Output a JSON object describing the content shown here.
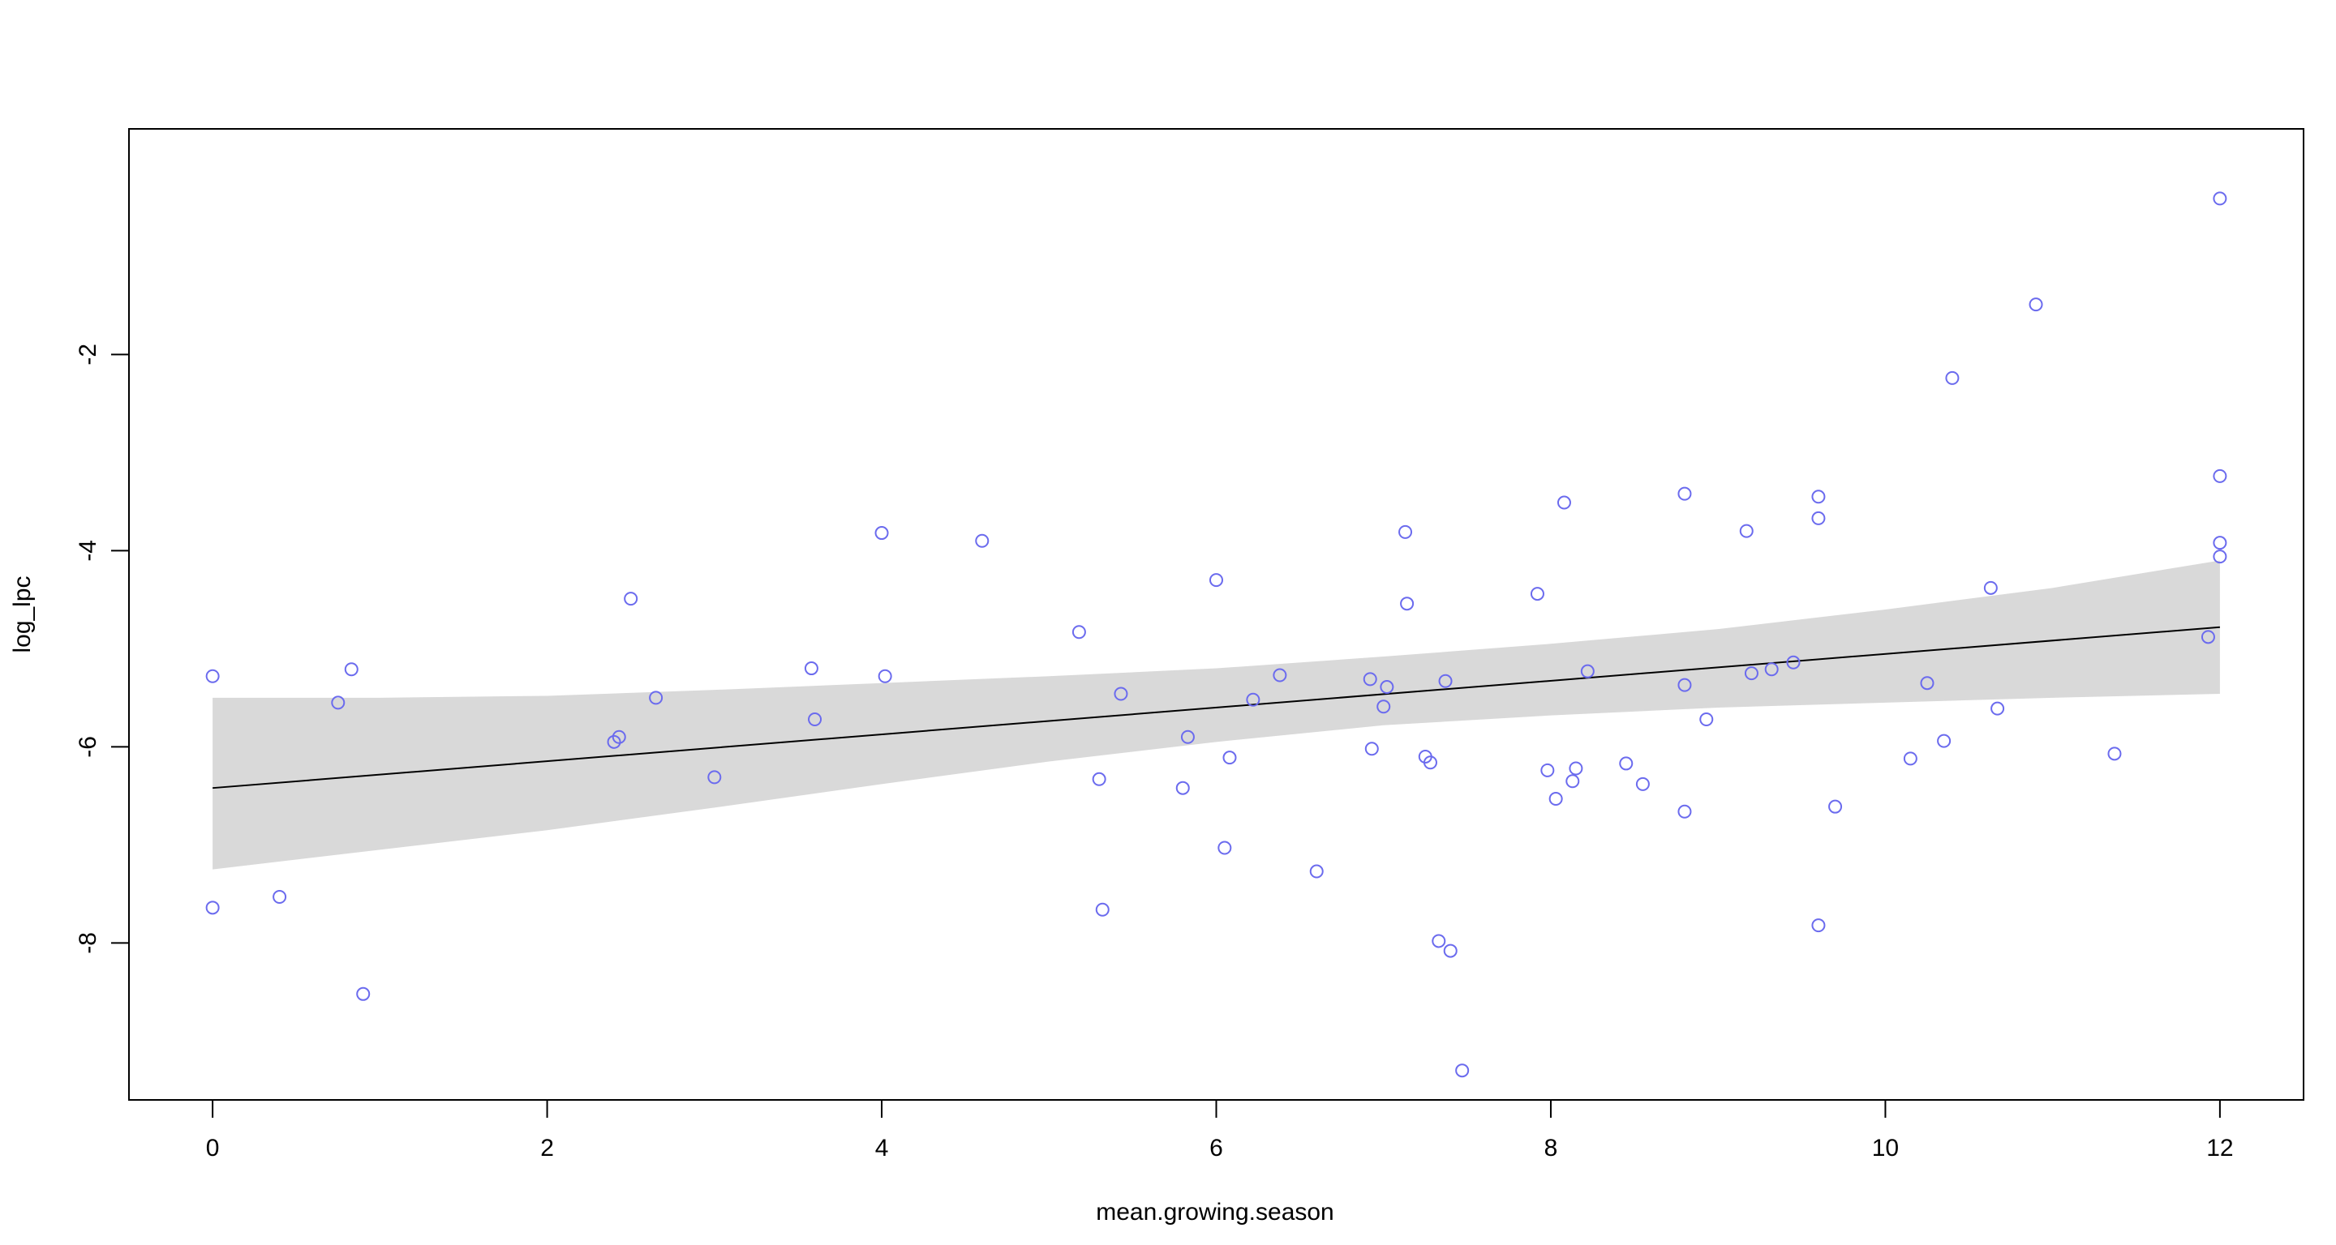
{
  "chart_data": {
    "type": "scatter",
    "xlabel": "mean.growing.season",
    "ylabel": "log_lpc",
    "xlim": [
      -0.5,
      12.5
    ],
    "ylim": [
      -9.6,
      0.3
    ],
    "x_ticks": [
      0,
      2,
      4,
      6,
      8,
      10,
      12
    ],
    "y_ticks": [
      -8,
      -6,
      -4,
      -2
    ],
    "x_tick_labels": [
      "0",
      "2",
      "4",
      "6",
      "8",
      "10",
      "12"
    ],
    "y_tick_labels": [
      "-8",
      "-6",
      "-4",
      "-2"
    ],
    "grid": false,
    "legend": "none",
    "point_color": "#6b6bee",
    "fit_color": "#000000",
    "band_color": "#d9d9d9",
    "points": [
      {
        "x": 0.0,
        "y": -5.28
      },
      {
        "x": 0.0,
        "y": -7.64
      },
      {
        "x": 0.4,
        "y": -7.53
      },
      {
        "x": 0.75,
        "y": -5.55
      },
      {
        "x": 0.83,
        "y": -5.21
      },
      {
        "x": 0.9,
        "y": -8.52
      },
      {
        "x": 2.4,
        "y": -5.95
      },
      {
        "x": 2.43,
        "y": -5.9
      },
      {
        "x": 2.5,
        "y": -4.49
      },
      {
        "x": 2.65,
        "y": -5.5
      },
      {
        "x": 3.0,
        "y": -6.31
      },
      {
        "x": 3.58,
        "y": -5.2
      },
      {
        "x": 3.6,
        "y": -5.72
      },
      {
        "x": 4.0,
        "y": -3.82
      },
      {
        "x": 4.02,
        "y": -5.28
      },
      {
        "x": 4.6,
        "y": -3.9
      },
      {
        "x": 5.18,
        "y": -4.83
      },
      {
        "x": 5.3,
        "y": -6.33
      },
      {
        "x": 5.32,
        "y": -7.66
      },
      {
        "x": 5.43,
        "y": -5.46
      },
      {
        "x": 5.8,
        "y": -6.42
      },
      {
        "x": 5.83,
        "y": -5.9
      },
      {
        "x": 6.0,
        "y": -4.3
      },
      {
        "x": 6.05,
        "y": -7.03
      },
      {
        "x": 6.08,
        "y": -6.11
      },
      {
        "x": 6.22,
        "y": -5.52
      },
      {
        "x": 6.38,
        "y": -5.27
      },
      {
        "x": 6.6,
        "y": -7.27
      },
      {
        "x": 6.92,
        "y": -5.31
      },
      {
        "x": 6.93,
        "y": -6.02
      },
      {
        "x": 7.0,
        "y": -5.59
      },
      {
        "x": 7.02,
        "y": -5.39
      },
      {
        "x": 7.13,
        "y": -3.81
      },
      {
        "x": 7.14,
        "y": -4.54
      },
      {
        "x": 7.25,
        "y": -6.1
      },
      {
        "x": 7.28,
        "y": -6.16
      },
      {
        "x": 7.33,
        "y": -7.98
      },
      {
        "x": 7.37,
        "y": -5.33
      },
      {
        "x": 7.4,
        "y": -8.08
      },
      {
        "x": 7.47,
        "y": -9.3
      },
      {
        "x": 7.92,
        "y": -4.44
      },
      {
        "x": 7.98,
        "y": -6.24
      },
      {
        "x": 8.03,
        "y": -6.53
      },
      {
        "x": 8.08,
        "y": -3.51
      },
      {
        "x": 8.13,
        "y": -6.35
      },
      {
        "x": 8.15,
        "y": -6.22
      },
      {
        "x": 8.22,
        "y": -5.23
      },
      {
        "x": 8.45,
        "y": -6.17
      },
      {
        "x": 8.55,
        "y": -6.38
      },
      {
        "x": 8.8,
        "y": -3.42
      },
      {
        "x": 8.8,
        "y": -5.37
      },
      {
        "x": 8.8,
        "y": -6.66
      },
      {
        "x": 8.93,
        "y": -5.72
      },
      {
        "x": 9.17,
        "y": -3.8
      },
      {
        "x": 9.2,
        "y": -5.25
      },
      {
        "x": 9.32,
        "y": -5.21
      },
      {
        "x": 9.45,
        "y": -5.14
      },
      {
        "x": 9.6,
        "y": -3.45
      },
      {
        "x": 9.6,
        "y": -3.67
      },
      {
        "x": 9.6,
        "y": -7.82
      },
      {
        "x": 9.7,
        "y": -6.61
      },
      {
        "x": 10.15,
        "y": -6.12
      },
      {
        "x": 10.25,
        "y": -5.35
      },
      {
        "x": 10.35,
        "y": -5.94
      },
      {
        "x": 10.4,
        "y": -2.24
      },
      {
        "x": 10.63,
        "y": -4.38
      },
      {
        "x": 10.67,
        "y": -5.61
      },
      {
        "x": 10.9,
        "y": -1.49
      },
      {
        "x": 11.37,
        "y": -6.07
      },
      {
        "x": 11.93,
        "y": -4.88
      },
      {
        "x": 12.0,
        "y": -0.41
      },
      {
        "x": 12.0,
        "y": -3.24
      },
      {
        "x": 12.0,
        "y": -3.92
      },
      {
        "x": 12.0,
        "y": -4.06
      }
    ],
    "fit_line": {
      "x": [
        0,
        12
      ],
      "y": [
        -6.42,
        -4.78
      ]
    },
    "confidence_band": {
      "x": [
        0,
        1,
        2,
        3,
        4,
        5,
        6,
        7,
        8,
        9,
        10,
        11,
        12
      ],
      "lower": [
        -7.25,
        -7.05,
        -6.85,
        -6.62,
        -6.38,
        -6.15,
        -5.95,
        -5.78,
        -5.68,
        -5.6,
        -5.55,
        -5.5,
        -5.46
      ],
      "upper": [
        -5.5,
        -5.5,
        -5.48,
        -5.42,
        -5.35,
        -5.28,
        -5.2,
        -5.08,
        -4.95,
        -4.8,
        -4.6,
        -4.38,
        -4.1
      ]
    }
  }
}
